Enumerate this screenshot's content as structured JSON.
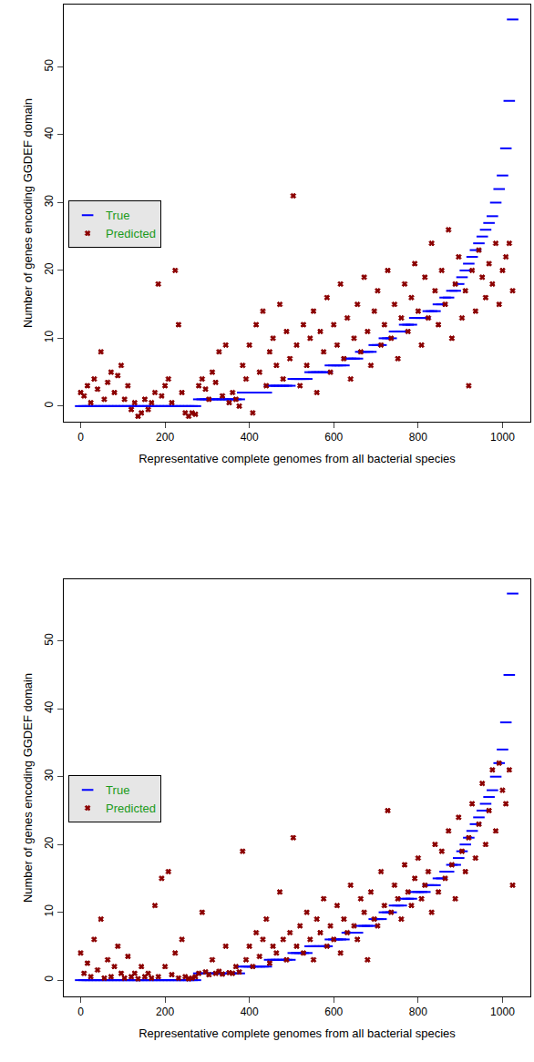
{
  "chart_data": [
    {
      "type": "scatter",
      "xlabel": "Representative complete genomes from all bacterial species",
      "ylabel": "Number of genes encoding GGDEF domain",
      "legend": "left",
      "grid": false,
      "xlim": [
        -40,
        1066
      ],
      "xticks": [
        0,
        200,
        400,
        600,
        800,
        1000
      ],
      "ylim": [
        -2.3,
        59.2
      ],
      "yticks": [
        0,
        10,
        20,
        30,
        40,
        50
      ],
      "x": [
        0,
        8,
        16,
        24,
        32,
        40,
        48,
        56,
        64,
        72,
        80,
        88,
        96,
        104,
        112,
        120,
        128,
        136,
        144,
        152,
        160,
        168,
        176,
        184,
        192,
        200,
        208,
        216,
        224,
        232,
        240,
        248,
        256,
        264,
        272,
        280,
        288,
        296,
        304,
        312,
        320,
        328,
        336,
        344,
        352,
        360,
        368,
        376,
        384,
        392,
        400,
        408,
        416,
        424,
        432,
        440,
        448,
        456,
        464,
        472,
        480,
        488,
        496,
        504,
        512,
        520,
        528,
        536,
        544,
        552,
        560,
        568,
        576,
        584,
        592,
        600,
        608,
        616,
        624,
        632,
        640,
        648,
        656,
        664,
        672,
        680,
        688,
        696,
        704,
        712,
        720,
        728,
        736,
        744,
        752,
        760,
        768,
        776,
        784,
        792,
        800,
        808,
        816,
        824,
        832,
        840,
        848,
        856,
        864,
        872,
        880,
        888,
        896,
        904,
        912,
        920,
        928,
        936,
        944,
        952,
        960,
        968,
        976,
        984,
        992,
        1000,
        1008,
        1016,
        1024
      ],
      "series": [
        {
          "name": "True",
          "color": "#0000ff",
          "marker": "dash",
          "values": [
            0,
            0,
            0,
            0,
            0,
            0,
            0,
            0,
            0,
            0,
            0,
            0,
            0,
            0,
            0,
            0,
            0,
            0,
            0,
            0,
            0,
            0,
            0,
            0,
            0,
            0,
            0,
            0,
            0,
            0,
            0,
            0,
            0,
            0,
            0,
            1,
            1,
            1,
            1,
            1,
            1,
            1,
            1,
            1,
            1,
            1,
            1,
            1,
            2,
            2,
            2,
            2,
            2,
            2,
            2,
            2,
            3,
            3,
            3,
            3,
            3,
            3,
            3,
            4,
            4,
            4,
            4,
            4,
            5,
            5,
            5,
            5,
            5,
            5,
            6,
            6,
            6,
            6,
            6,
            7,
            7,
            7,
            7,
            8,
            8,
            8,
            8,
            9,
            9,
            9,
            10,
            10,
            10,
            11,
            11,
            11,
            12,
            12,
            12,
            13,
            13,
            13,
            13,
            14,
            14,
            14,
            15,
            15,
            16,
            16,
            17,
            17,
            18,
            19,
            20,
            21,
            22,
            23,
            24,
            25,
            26,
            27,
            28,
            30,
            32,
            34,
            38,
            45,
            57
          ]
        },
        {
          "name": "Predicted",
          "color": "#8b0000",
          "marker": "x",
          "values": [
            2,
            1.5,
            3,
            0.5,
            4,
            2.5,
            8,
            1,
            3.5,
            5,
            2,
            4.5,
            6,
            1,
            3,
            -0.5,
            0.5,
            -1.5,
            -1,
            1,
            -0.5,
            0.5,
            2,
            18,
            1.5,
            3,
            4,
            0.5,
            20,
            12,
            2,
            -1,
            -1.5,
            -1,
            -1.2,
            3,
            4,
            2.5,
            1,
            5,
            3.5,
            8,
            1.5,
            9,
            0.5,
            2,
            1,
            0,
            6,
            4,
            9,
            -1,
            12,
            5,
            14,
            3,
            8,
            10,
            6,
            15,
            4,
            11,
            7,
            31,
            9,
            3,
            12,
            6,
            10,
            14,
            2,
            11,
            8,
            16,
            5,
            12,
            9,
            18,
            7,
            13,
            4,
            10,
            15,
            8,
            19,
            11,
            6,
            14,
            17,
            9,
            12,
            20,
            10,
            15,
            7,
            13,
            18,
            11,
            16,
            21,
            14,
            9,
            19,
            13,
            24,
            17,
            12,
            20,
            15,
            26,
            10,
            18,
            22,
            13,
            17,
            3,
            20,
            14,
            23,
            19,
            16,
            21,
            18,
            24,
            15,
            20,
            22,
            24,
            17
          ]
        }
      ]
    },
    {
      "type": "scatter",
      "xlabel": "Representative complete genomes from all bacterial species",
      "ylabel": "Number of genes encoding GGDEF domain",
      "legend": "left",
      "grid": false,
      "xlim": [
        -40,
        1066
      ],
      "xticks": [
        0,
        200,
        400,
        600,
        800,
        1000
      ],
      "ylim": [
        -2.4,
        59.1
      ],
      "yticks": [
        0,
        10,
        20,
        30,
        40,
        50
      ],
      "x": [
        0,
        8,
        16,
        24,
        32,
        40,
        48,
        56,
        64,
        72,
        80,
        88,
        96,
        104,
        112,
        120,
        128,
        136,
        144,
        152,
        160,
        168,
        176,
        184,
        192,
        200,
        208,
        216,
        224,
        232,
        240,
        248,
        256,
        264,
        272,
        280,
        288,
        296,
        304,
        312,
        320,
        328,
        336,
        344,
        352,
        360,
        368,
        376,
        384,
        392,
        400,
        408,
        416,
        424,
        432,
        440,
        448,
        456,
        464,
        472,
        480,
        488,
        496,
        504,
        512,
        520,
        528,
        536,
        544,
        552,
        560,
        568,
        576,
        584,
        592,
        600,
        608,
        616,
        624,
        632,
        640,
        648,
        656,
        664,
        672,
        680,
        688,
        696,
        704,
        712,
        720,
        728,
        736,
        744,
        752,
        760,
        768,
        776,
        784,
        792,
        800,
        808,
        816,
        824,
        832,
        840,
        848,
        856,
        864,
        872,
        880,
        888,
        896,
        904,
        912,
        920,
        928,
        936,
        944,
        952,
        960,
        968,
        976,
        984,
        992,
        1000,
        1008,
        1016,
        1024
      ],
      "series": [
        {
          "name": "True",
          "color": "#0000ff",
          "marker": "dash",
          "values": [
            0,
            0,
            0,
            0,
            0,
            0,
            0,
            0,
            0,
            0,
            0,
            0,
            0,
            0,
            0,
            0,
            0,
            0,
            0,
            0,
            0,
            0,
            0,
            0,
            0,
            0,
            0,
            0,
            0,
            0,
            0,
            0,
            0,
            0,
            0,
            1,
            1,
            1,
            1,
            1,
            1,
            1,
            1,
            1,
            1,
            1,
            1,
            1,
            2,
            2,
            2,
            2,
            2,
            2,
            2,
            2,
            3,
            3,
            3,
            3,
            3,
            3,
            3,
            4,
            4,
            4,
            4,
            4,
            5,
            5,
            5,
            5,
            5,
            5,
            6,
            6,
            6,
            6,
            6,
            7,
            7,
            7,
            7,
            8,
            8,
            8,
            8,
            9,
            9,
            9,
            10,
            10,
            10,
            11,
            11,
            11,
            12,
            12,
            12,
            13,
            13,
            13,
            13,
            14,
            14,
            14,
            15,
            15,
            16,
            16,
            17,
            17,
            18,
            19,
            20,
            21,
            22,
            23,
            24,
            25,
            26,
            27,
            28,
            30,
            32,
            34,
            38,
            45,
            57
          ]
        },
        {
          "name": "Predicted",
          "color": "#8b0000",
          "marker": "x",
          "values": [
            4,
            1,
            2.5,
            0.5,
            6,
            1.5,
            9,
            0.3,
            3,
            0.5,
            2,
            5,
            1,
            0.3,
            3.5,
            0.5,
            1,
            0.2,
            2,
            0.5,
            1,
            0.3,
            11,
            0.5,
            15,
            2,
            16,
            0.8,
            4,
            0.3,
            6,
            0.5,
            0.2,
            0.3,
            0.5,
            1,
            10,
            1.2,
            0.8,
            3,
            1,
            1.3,
            0.9,
            5,
            1.1,
            1,
            2,
            1.2,
            19,
            3,
            5,
            2,
            7,
            3.5,
            6,
            9,
            2.5,
            5,
            4,
            13,
            6,
            3,
            7,
            21,
            5,
            8,
            4,
            10,
            6,
            3,
            9,
            7,
            12,
            5,
            8,
            6,
            11,
            4,
            9,
            7,
            14,
            8,
            6,
            12,
            10,
            3,
            13,
            9,
            8,
            16,
            11,
            25,
            10,
            14,
            12,
            9,
            17,
            13,
            11,
            15,
            18,
            12,
            14,
            16,
            10,
            20,
            13,
            19,
            15,
            22,
            17,
            12,
            24,
            19,
            16,
            21,
            26,
            18,
            23,
            29,
            20,
            25,
            31,
            22,
            32,
            28,
            26,
            31,
            14
          ]
        }
      ]
    }
  ]
}
